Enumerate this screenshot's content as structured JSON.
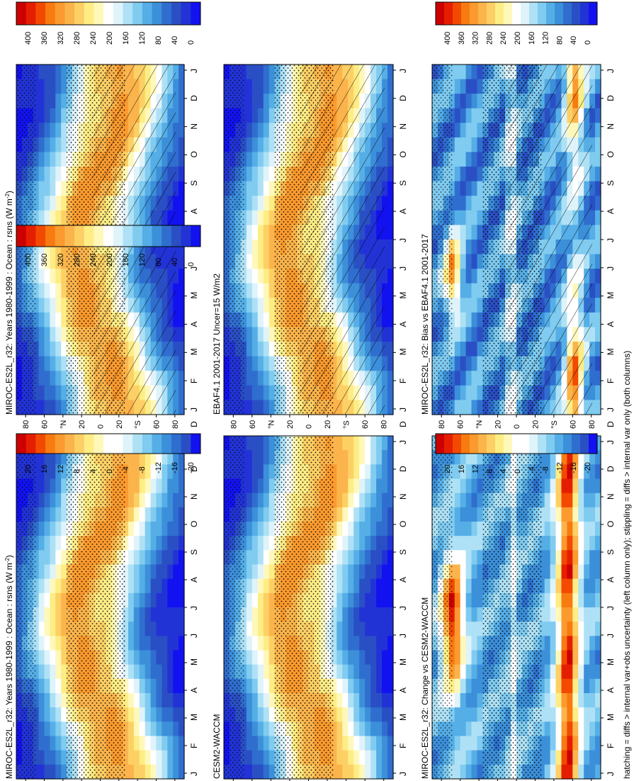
{
  "figure_footnote": "hatching = diffs > internal var+obs uncertainty (left column only); stippling = diffs > internal var only (both columns)",
  "palettes": {
    "abs": [
      "#cc0000",
      "#e61e00",
      "#f24a00",
      "#f77b11",
      "#fb9a2e",
      "#fbb44b",
      "#fdd065",
      "#feed85",
      "#fff8bb",
      "#ffffff",
      "#dff3fb",
      "#aee1f5",
      "#80cbf0",
      "#55aee6",
      "#3c8fd9",
      "#2f6ecf",
      "#2a4fc4",
      "#2233d6",
      "#1212f0"
    ],
    "diff": [
      "#cc0000",
      "#e61e00",
      "#f24a00",
      "#f77b11",
      "#fb9a2e",
      "#fbb44b",
      "#fdd065",
      "#feed85",
      "#fff8bb",
      "#ffffff",
      "#ffffff",
      "#dff3fb",
      "#aee1f5",
      "#80cbf0",
      "#55aee6",
      "#3c8fd9",
      "#2f6ecf",
      "#2a4fc4",
      "#1212f0"
    ]
  },
  "chart_data": [
    {
      "id": "top-left",
      "type": "heatmap",
      "title": "MIROC-ES2L_r32: Years 1980-1999 : Ocean : rsns (W m",
      "title_sup": "-2",
      "title_end": ")",
      "xlabel": "month",
      "ylabel": "latitude",
      "x_ticks": [
        "J",
        "F",
        "M",
        "A",
        "M",
        "J",
        "J",
        "A",
        "S",
        "O",
        "N",
        "D",
        "J"
      ],
      "x_end_label": "D",
      "y_ticks": [
        "80",
        "60",
        "°N",
        "20",
        "0",
        "20",
        "°S",
        "60",
        "80"
      ],
      "ylim": [
        -90,
        90
      ],
      "field": "abs",
      "colorbar_labels": [
        "400",
        "360",
        "320",
        "280",
        "240",
        "200",
        "160",
        "120",
        "80",
        "40",
        "0"
      ],
      "hatching": true,
      "stippling": true
    },
    {
      "id": "top-right",
      "type": "heatmap",
      "title": "MIROC-ES2L_r32: Years 1980-1999 : Ocean : rsns (W m",
      "title_sup": "-2",
      "title_end": ")",
      "xlabel": "month",
      "ylabel": "latitude",
      "x_ticks": [
        "J",
        "F",
        "M",
        "A",
        "M",
        "J",
        "J",
        "A",
        "S",
        "O",
        "N",
        "D",
        "J"
      ],
      "x_end_label": "D",
      "y_ticks": [
        "80",
        "60",
        "°N",
        "20",
        "0",
        "20",
        "°S",
        "60",
        "80"
      ],
      "ylim": [
        -90,
        90
      ],
      "field": "abs",
      "colorbar_labels": [
        "400",
        "360",
        "320",
        "280",
        "240",
        "200",
        "160",
        "120",
        "80",
        "40",
        "0"
      ],
      "hatching": false,
      "stippling": true
    },
    {
      "id": "middle-left",
      "type": "heatmap",
      "title": "EBAF4.1 2001-2017 Uncer=15 W/m2",
      "xlabel": "month",
      "ylabel": "latitude",
      "x_ticks": [
        "J",
        "F",
        "M",
        "A",
        "M",
        "J",
        "J",
        "A",
        "S",
        "O",
        "N",
        "D",
        "J"
      ],
      "x_end_label": "D",
      "y_ticks": [
        "80",
        "60",
        "°N",
        "20",
        "0",
        "20",
        "°S",
        "60",
        "80"
      ],
      "ylim": [
        -90,
        90
      ],
      "field": "abs",
      "colorbar_labels": [
        "400",
        "360",
        "320",
        "280",
        "240",
        "200",
        "160",
        "120",
        "80",
        "40",
        "0"
      ],
      "hatching": true,
      "stippling": true
    },
    {
      "id": "middle-right",
      "type": "heatmap",
      "title": "CESM2-WACCM",
      "xlabel": "month",
      "ylabel": "latitude",
      "x_ticks": [
        "J",
        "F",
        "M",
        "A",
        "M",
        "J",
        "J",
        "A",
        "S",
        "O",
        "N",
        "D",
        "J"
      ],
      "x_end_label": "D",
      "y_ticks": [
        "80",
        "60",
        "°N",
        "20",
        "0",
        "20",
        "°S",
        "60",
        "80"
      ],
      "ylim": [
        -90,
        90
      ],
      "field": "abs",
      "colorbar_labels": [
        "400",
        "360",
        "320",
        "280",
        "240",
        "200",
        "160",
        "120",
        "80",
        "40",
        "0"
      ],
      "hatching": false,
      "stippling": true
    },
    {
      "id": "bottom-left",
      "type": "heatmap",
      "title": "MIROC-ES2L_r32: Bias vs EBAF4.1 2001-2017",
      "xlabel": "month",
      "ylabel": "latitude",
      "x_ticks": [
        "J",
        "F",
        "M",
        "A",
        "M",
        "J",
        "J",
        "A",
        "S",
        "O",
        "N",
        "D",
        "J"
      ],
      "x_end_label": "D",
      "y_ticks": [
        "80",
        "60",
        "°N",
        "20",
        "0",
        "20",
        "°S",
        "60",
        "80"
      ],
      "ylim": [
        -90,
        90
      ],
      "field": "bias",
      "colorbar_labels": [
        "20",
        "16",
        "12",
        "8",
        "4",
        "0",
        "-4",
        "-8",
        "-12",
        "-16",
        "-20"
      ],
      "hatching": true,
      "stippling": true
    },
    {
      "id": "bottom-right",
      "type": "heatmap",
      "title": "MIROC-ES2L_r32: Change vs CESM2-WACCM",
      "xlabel": "month",
      "ylabel": "latitude",
      "x_ticks": [
        "J",
        "F",
        "M",
        "A",
        "M",
        "J",
        "J",
        "A",
        "S",
        "O",
        "N",
        "D",
        "J"
      ],
      "x_end_label": "D",
      "y_ticks": [
        "80",
        "60",
        "°N",
        "20",
        "0",
        "20",
        "°S",
        "60",
        "80"
      ],
      "ylim": [
        -90,
        90
      ],
      "field": "change",
      "colorbar_labels": [
        "20",
        "16",
        "12",
        "8",
        "4",
        "0",
        "-4",
        "-8",
        "-12",
        "-16",
        "-20"
      ],
      "hatching": false,
      "stippling": true
    }
  ]
}
